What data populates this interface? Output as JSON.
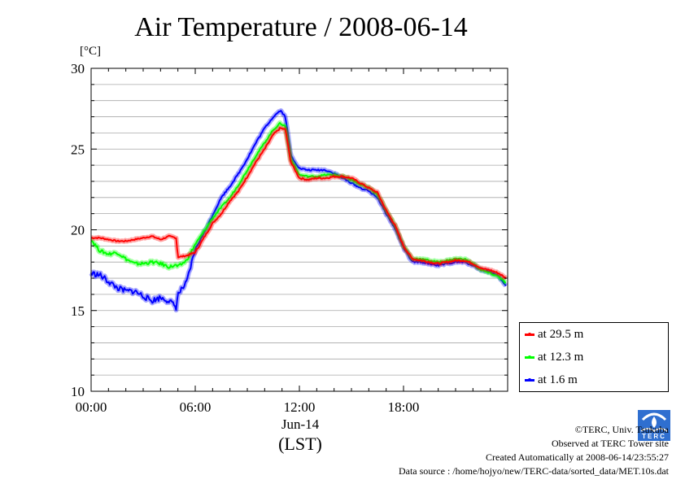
{
  "page_title": "Air Temperature / 2008-06-14",
  "chart_data": {
    "type": "line",
    "title": "Air Temperature / 2008-06-14",
    "ylabel": "[°C]",
    "xlabel_date": "Jun-14",
    "xlabel_tz": "(LST)",
    "ylim": [
      10,
      30
    ],
    "xlim_hours": [
      0,
      24
    ],
    "yticks": [
      10,
      15,
      20,
      25,
      30
    ],
    "xticks": [
      {
        "label": "00:00",
        "hour": 0
      },
      {
        "label": "06:00",
        "hour": 6
      },
      {
        "label": "12:00",
        "hour": 12
      },
      {
        "label": "18:00",
        "hour": 18
      }
    ],
    "grid": true,
    "legend_position": "bottom-right outside",
    "hours": [
      0,
      0.5,
      1,
      1.5,
      2,
      2.5,
      3,
      3.5,
      4,
      4.5,
      4.9,
      5,
      5.5,
      6,
      6.5,
      7,
      7.5,
      8,
      8.5,
      9,
      9.5,
      10,
      10.5,
      10.9,
      11.2,
      11.5,
      12,
      12.5,
      13,
      13.5,
      14,
      14.5,
      15,
      15.5,
      16,
      16.5,
      17,
      17.5,
      18,
      18.5,
      19,
      19.5,
      20,
      20.5,
      21,
      21.5,
      22,
      22.5,
      23,
      23.5,
      23.9
    ],
    "series": [
      {
        "name": "at 29.5 m",
        "color": "#ff0000",
        "values": [
          19.5,
          19.5,
          19.4,
          19.3,
          19.3,
          19.4,
          19.5,
          19.6,
          19.4,
          19.6,
          19.5,
          18.3,
          18.4,
          18.6,
          19.5,
          20.4,
          21.0,
          21.8,
          22.4,
          23.3,
          24.2,
          25.0,
          25.9,
          26.3,
          26.2,
          24.2,
          23.2,
          23.1,
          23.2,
          23.2,
          23.3,
          23.3,
          23.2,
          22.9,
          22.6,
          22.3,
          21.2,
          20.3,
          19.0,
          18.2,
          18.1,
          18.0,
          17.9,
          18.0,
          18.1,
          18.1,
          17.9,
          17.6,
          17.5,
          17.3,
          17.0
        ]
      },
      {
        "name": "at 12.3 m",
        "color": "#00ff00",
        "values": [
          19.4,
          18.7,
          18.5,
          18.6,
          18.2,
          17.9,
          17.9,
          18.0,
          17.9,
          17.7,
          17.8,
          17.7,
          18.1,
          19.1,
          19.9,
          20.7,
          21.4,
          22.0,
          22.8,
          23.7,
          24.6,
          25.4,
          26.2,
          26.6,
          26.4,
          24.4,
          23.4,
          23.3,
          23.3,
          23.4,
          23.4,
          23.3,
          23.1,
          22.8,
          22.6,
          22.2,
          21.2,
          20.3,
          19.0,
          18.2,
          18.2,
          18.1,
          18.0,
          18.1,
          18.2,
          18.2,
          17.9,
          17.5,
          17.3,
          17.1,
          16.7
        ]
      },
      {
        "name": "at 1.6 m",
        "color": "#0000ff",
        "values": [
          17.3,
          17.2,
          16.8,
          16.4,
          16.2,
          16.2,
          15.9,
          15.6,
          15.8,
          15.6,
          15.2,
          16.0,
          16.7,
          18.8,
          19.8,
          20.9,
          22.0,
          22.7,
          23.5,
          24.4,
          25.4,
          26.3,
          27.0,
          27.4,
          27.0,
          24.6,
          23.8,
          23.7,
          23.7,
          23.7,
          23.5,
          23.2,
          22.9,
          22.6,
          22.4,
          22.0,
          21.0,
          20.1,
          18.9,
          18.0,
          18.0,
          17.9,
          17.8,
          17.9,
          18.0,
          18.0,
          17.8,
          17.5,
          17.4,
          17.1,
          16.5
        ]
      }
    ]
  },
  "credits": {
    "copyright": "©TERC, Univ. Tsukuba",
    "observed": "Observed at TERC Tower site",
    "created": "Created Automatically at 2008-06-14/23:55:27",
    "source": "Data source : /home/hojyo/new/TERC-data/sorted_data/MET.10s.dat",
    "logo_text": "TERC",
    "logo_color": "#2f6fd0"
  }
}
